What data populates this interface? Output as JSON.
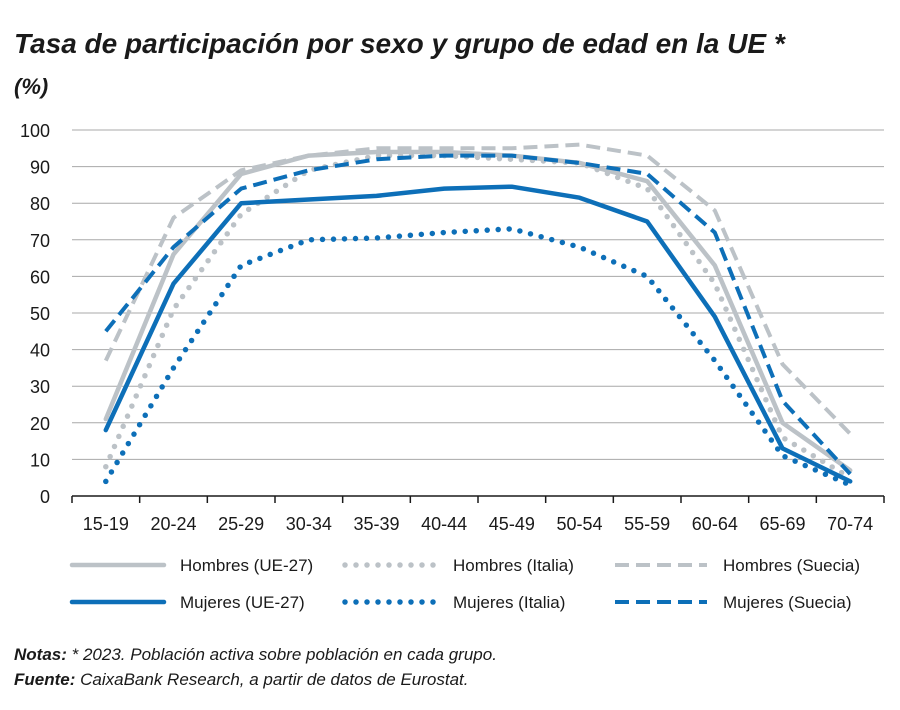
{
  "title": "Tasa de participación por sexo y grupo de edad en la UE *",
  "unit": "(%)",
  "notes_label": "Notas:",
  "notes_text": " * 2023. Población activa sobre población en cada grupo.",
  "source_label": "Fuente:",
  "source_text": " CaixaBank Research, a partir de datos de Eurostat.",
  "chart_data": {
    "type": "line",
    "ylim": [
      0,
      100
    ],
    "yticks": [
      0,
      10,
      20,
      30,
      40,
      50,
      60,
      70,
      80,
      90,
      100
    ],
    "grid": true,
    "legend_position": "bottom",
    "categories": [
      "15-19",
      "20-24",
      "25-29",
      "30-34",
      "35-39",
      "40-44",
      "45-49",
      "50-54",
      "55-59",
      "60-64",
      "65-69",
      "70-74"
    ],
    "series": [
      {
        "name": "Hombres (UE-27)",
        "color": "#bcc2c7",
        "style": "solid",
        "values": [
          21,
          66,
          88,
          93,
          94,
          94,
          93,
          91,
          86,
          63,
          20,
          7
        ]
      },
      {
        "name": "Hombres (Italia)",
        "color": "#bcc2c7",
        "style": "dotted",
        "values": [
          8,
          51,
          77,
          89,
          93,
          93,
          92,
          91,
          84,
          58,
          16,
          5
        ]
      },
      {
        "name": "Hombres (Suecia)",
        "color": "#bcc2c7",
        "style": "dashed",
        "values": [
          37,
          76,
          89,
          93,
          95,
          95,
          95,
          96,
          93,
          78,
          36,
          17
        ]
      },
      {
        "name": "Mujeres (UE-27)",
        "color": "#0d6fb8",
        "style": "solid",
        "values": [
          18,
          58,
          80,
          81,
          82,
          84,
          84.5,
          81.5,
          75,
          49,
          13,
          4
        ]
      },
      {
        "name": "Mujeres (Italia)",
        "color": "#0d6fb8",
        "style": "dotted",
        "values": [
          4,
          35,
          63,
          70,
          70.5,
          72,
          73,
          68,
          60,
          37,
          11,
          3
        ]
      },
      {
        "name": "Mujeres (Suecia)",
        "color": "#0d6fb8",
        "style": "dashed",
        "values": [
          45,
          68,
          84,
          89,
          92,
          93,
          93,
          91,
          88,
          72,
          26,
          6
        ]
      }
    ]
  }
}
